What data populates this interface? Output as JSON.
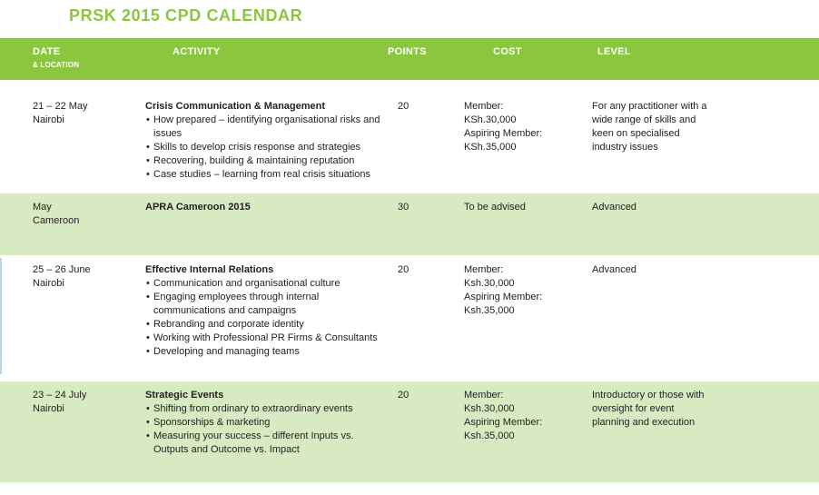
{
  "title": "PRSK 2015 CPD CALENDAR",
  "colors": {
    "header_green": "#8cc63f",
    "row_band_green": "#d8eac2",
    "title_green": "#8cc63f",
    "body_text": "#242122",
    "left_artifact_blue": "#b8d4e6"
  },
  "table": {
    "headers": {
      "date_line1": "DATE",
      "date_line2": "& LOCATION",
      "activity": "ACTIVITY",
      "points": "POINTS",
      "cost": "COST",
      "level": "LEVEL"
    },
    "rows": [
      {
        "date": "21 – 22 May",
        "location": "Nairobi",
        "activity_title": "Crisis Communication & Management",
        "bullets": [
          "How prepared – identifying organisational risks and issues",
          "Skills to develop crisis response and strategies",
          "Recovering, building & maintaining reputation",
          "Case studies – learning from real crisis situations"
        ],
        "points": "20",
        "cost_lines": [
          "Member:",
          "KSh.30,000",
          "Aspiring Member:",
          "KSh.35,000"
        ],
        "level": "For any practitioner with a wide range of skills and keen on specialised industry issues"
      },
      {
        "date": "May",
        "location": "Cameroon",
        "activity_title": "APRA Cameroon 2015",
        "bullets": [],
        "points": "30",
        "cost_lines": [
          "To be advised"
        ],
        "level": "Advanced"
      },
      {
        "date": "25 – 26 June",
        "location": "Nairobi",
        "activity_title": "Effective Internal Relations",
        "bullets": [
          "Communication and organisational culture",
          "Engaging employees through internal communications and campaigns",
          "Rebranding and corporate identity",
          "Working with Professional PR Firms & Consultants",
          "Developing and managing teams"
        ],
        "points": "20",
        "cost_lines": [
          "Member:",
          "Ksh.30,000",
          "Aspiring Member:",
          "Ksh.35,000"
        ],
        "level": "Advanced"
      },
      {
        "date": "23 – 24 July",
        "location": "Nairobi",
        "activity_title": "Strategic Events",
        "bullets": [
          "Shifting from ordinary to extraordinary events",
          "Sponsorships & marketing",
          "Measuring your success – different Inputs vs. Outputs and Outcome vs. Impact"
        ],
        "points": "20",
        "cost_lines": [
          "Member:",
          "Ksh.30,000",
          "Aspiring Member:",
          "Ksh.35,000"
        ],
        "level": "Introductory or those with oversight for event planning and execution"
      }
    ]
  }
}
